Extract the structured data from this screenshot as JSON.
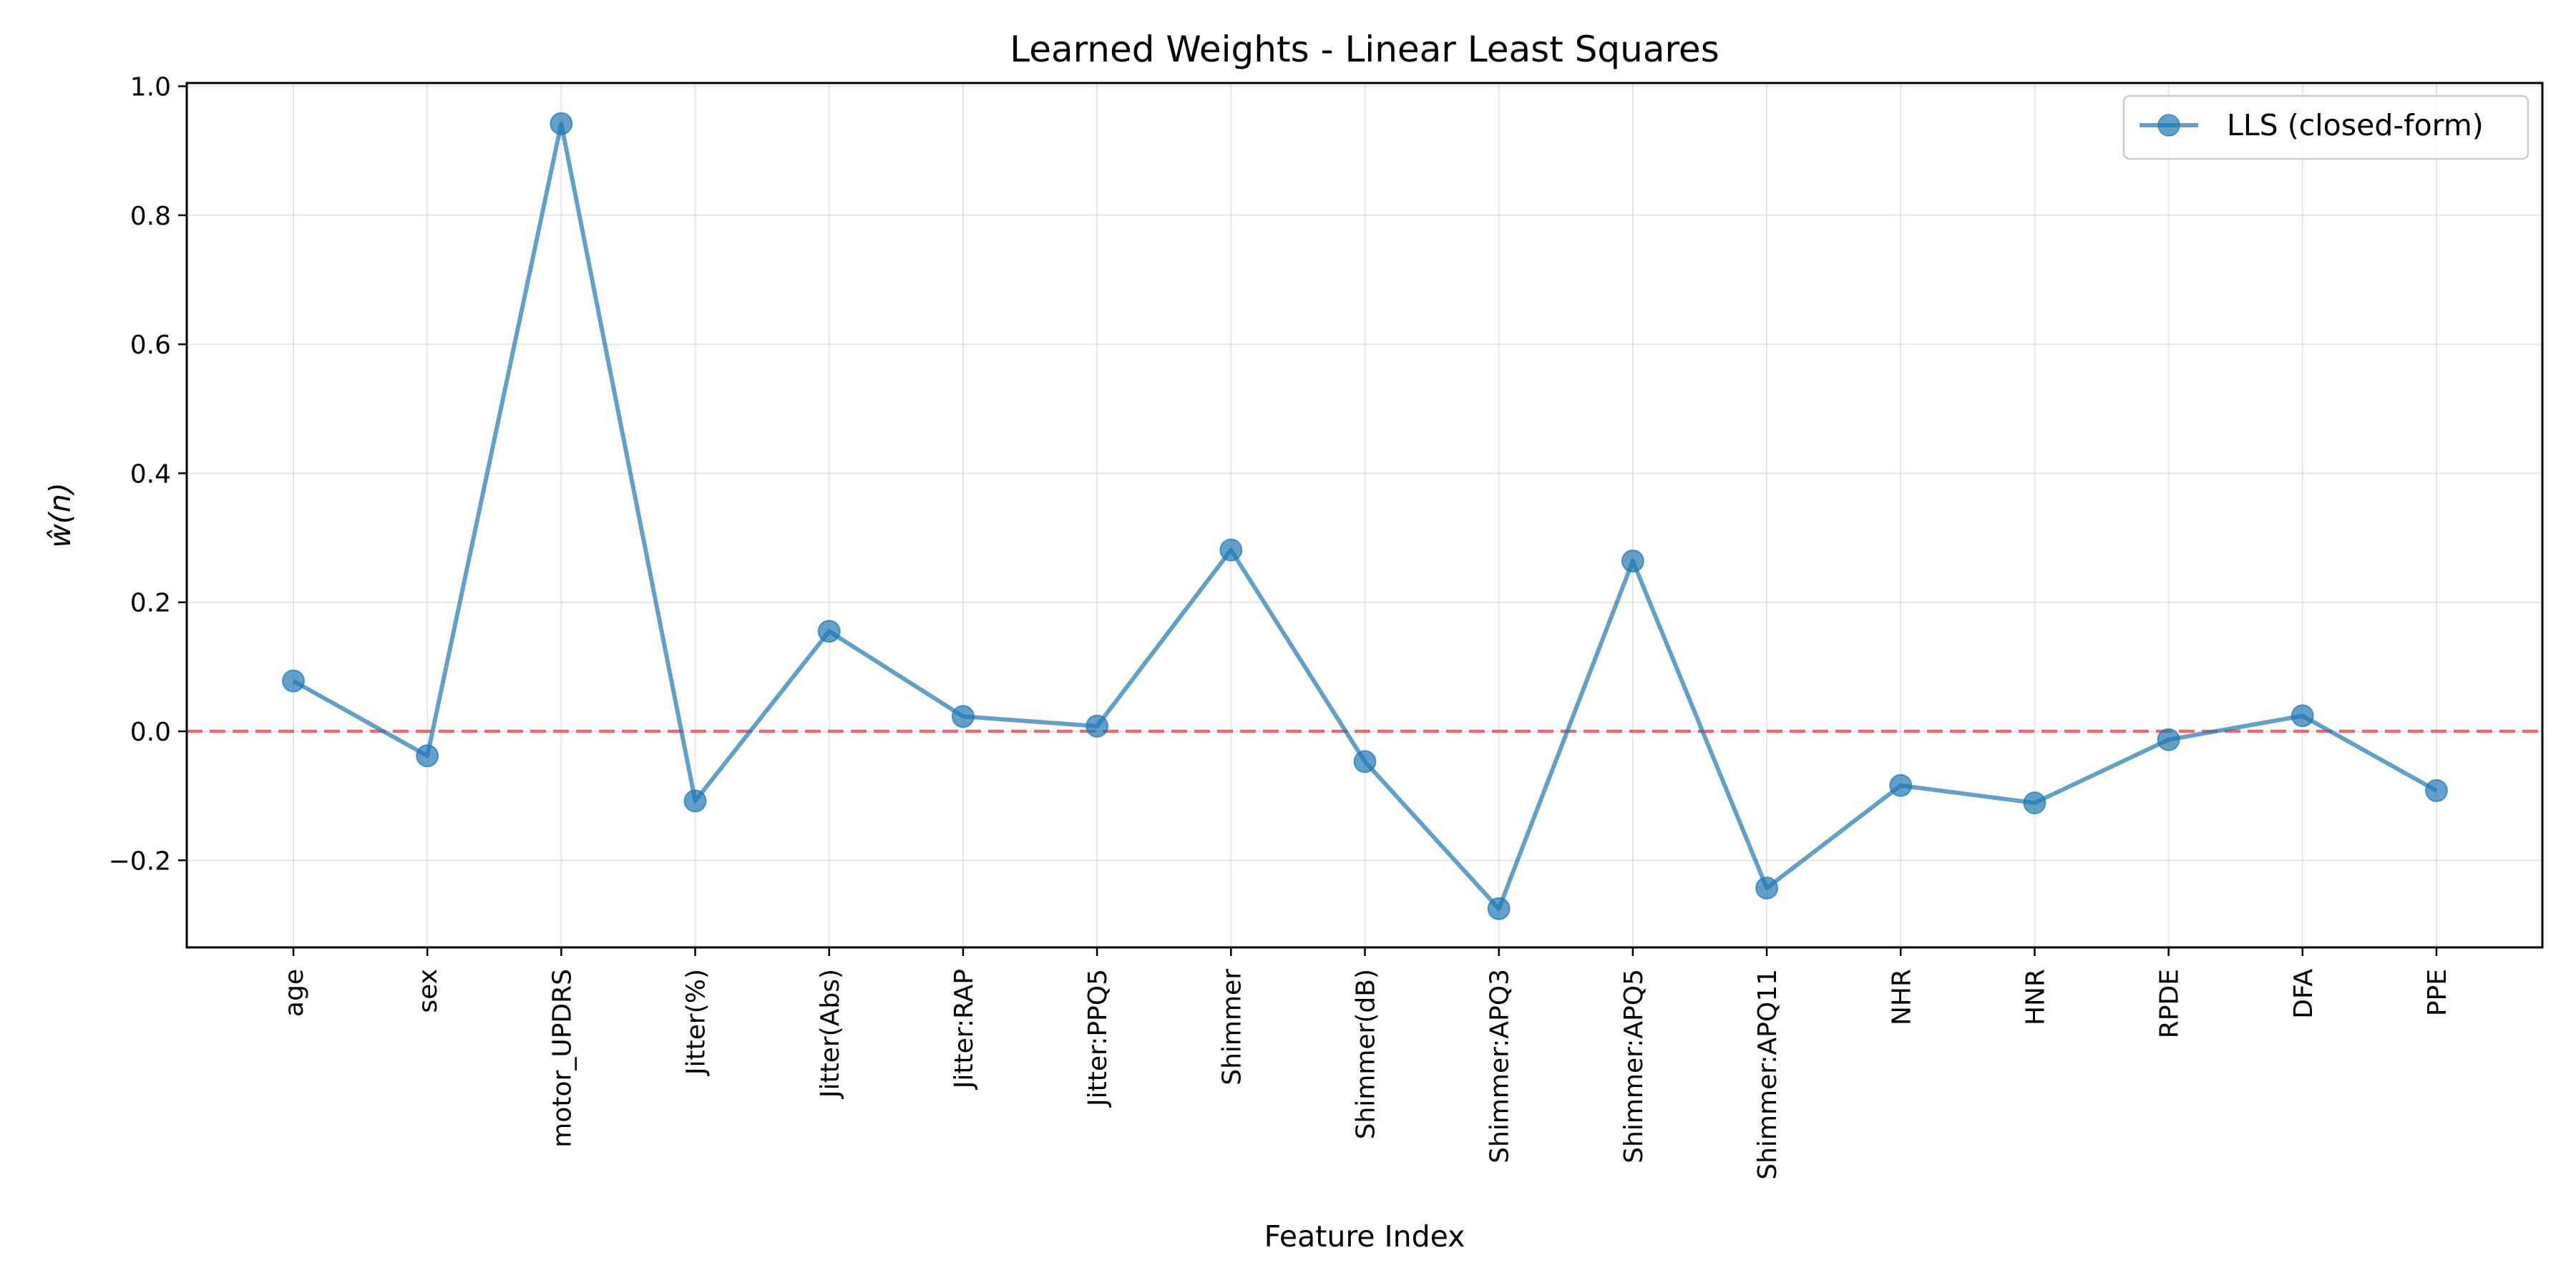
{
  "chart_data": {
    "type": "line",
    "title": "Learned Weights - Linear Least Squares",
    "xlabel": "Feature Index",
    "ylabel": "ŵ(n)",
    "ylim": [
      -0.335,
      1.005
    ],
    "yticks": [
      -0.2,
      0.0,
      0.2,
      0.4,
      0.6,
      0.8,
      1.0
    ],
    "ytick_labels": [
      "−0.2",
      "0.0",
      "0.2",
      "0.4",
      "0.6",
      "0.8",
      "1.0"
    ],
    "grid": true,
    "legend_position": "top-right",
    "categories": [
      "age",
      "sex",
      "motor_UPDRS",
      "Jitter(%)",
      "Jitter(Abs)",
      "Jitter:RAP",
      "Jitter:PPQ5",
      "Shimmer",
      "Shimmer(dB)",
      "Shimmer:APQ3",
      "Shimmer:APQ5",
      "Shimmer:APQ11",
      "NHR",
      "HNR",
      "RPDE",
      "DFA",
      "PPE"
    ],
    "series": [
      {
        "name": "LLS (closed-form)",
        "color": "#1f77b4",
        "values": [
          0.078,
          -0.038,
          0.942,
          -0.108,
          0.155,
          0.023,
          0.008,
          0.281,
          -0.047,
          -0.275,
          0.264,
          -0.243,
          -0.084,
          -0.111,
          -0.013,
          0.024,
          -0.092
        ]
      }
    ],
    "reference_line": {
      "y": 0.0,
      "color": "#e8474c",
      "style": "dashed"
    }
  }
}
